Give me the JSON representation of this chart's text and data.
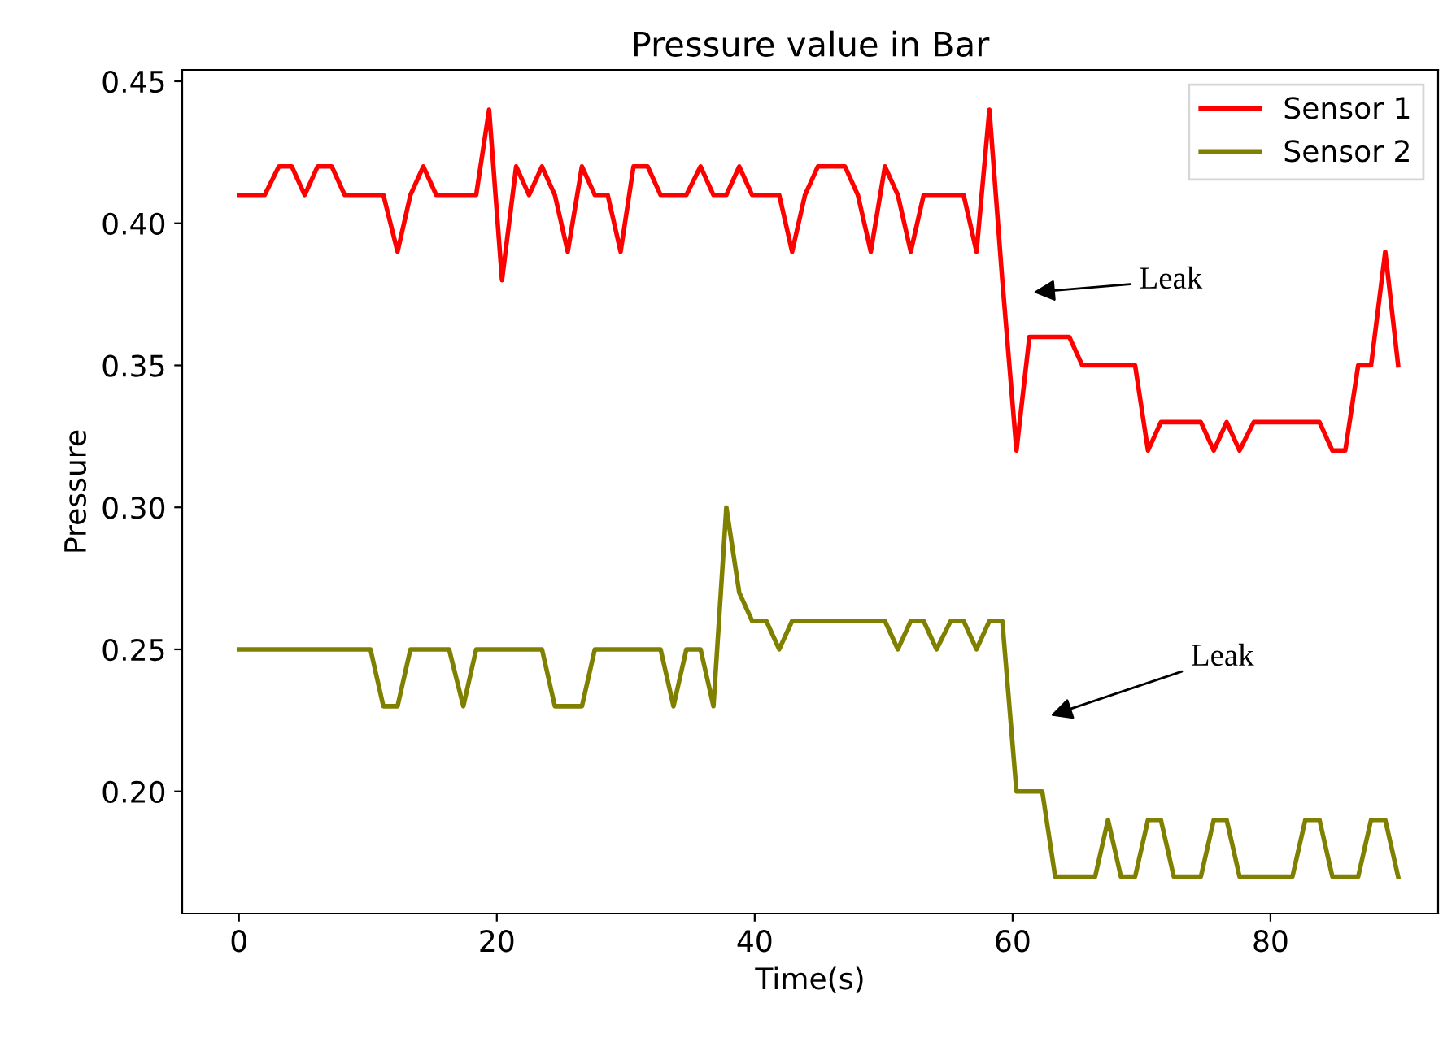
{
  "chart_data": {
    "type": "line",
    "title": "Pressure value in Bar",
    "xlabel": "Time(s)",
    "ylabel": "Pressure",
    "x": [
      0.0,
      1.0,
      2.0,
      3.1,
      4.1,
      5.1,
      6.1,
      7.2,
      8.2,
      9.2,
      10.2,
      11.2,
      12.3,
      13.3,
      14.3,
      15.3,
      16.3,
      17.4,
      18.4,
      19.4,
      20.4,
      21.5,
      22.5,
      23.5,
      24.5,
      25.5,
      26.6,
      27.6,
      28.6,
      29.6,
      30.6,
      31.7,
      32.7,
      33.7,
      34.7,
      35.8,
      36.8,
      37.8,
      38.8,
      39.8,
      40.9,
      41.9,
      42.9,
      43.9,
      44.9,
      46.0,
      47.0,
      48.0,
      49.0,
      50.1,
      51.1,
      52.1,
      53.1,
      54.1,
      55.2,
      56.2,
      57.2,
      58.2,
      59.2,
      60.3,
      61.3,
      62.3,
      63.3,
      64.4,
      65.4,
      66.4,
      67.4,
      68.4,
      69.5,
      70.5,
      71.5,
      72.5,
      73.5,
      74.6,
      75.6,
      76.6,
      77.6,
      78.7,
      79.7,
      80.7,
      81.7,
      82.7,
      83.8,
      84.8,
      85.8,
      86.8,
      87.8,
      88.9,
      89.9
    ],
    "series": [
      {
        "name": "Sensor 1",
        "color": "#ff0000",
        "values": [
          0.41,
          0.41,
          0.41,
          0.42,
          0.42,
          0.41,
          0.42,
          0.42,
          0.41,
          0.41,
          0.41,
          0.41,
          0.39,
          0.41,
          0.42,
          0.41,
          0.41,
          0.41,
          0.41,
          0.44,
          0.38,
          0.42,
          0.41,
          0.42,
          0.41,
          0.39,
          0.42,
          0.41,
          0.41,
          0.39,
          0.42,
          0.42,
          0.41,
          0.41,
          0.41,
          0.42,
          0.41,
          0.41,
          0.42,
          0.41,
          0.41,
          0.41,
          0.39,
          0.41,
          0.42,
          0.42,
          0.42,
          0.41,
          0.39,
          0.42,
          0.41,
          0.39,
          0.41,
          0.41,
          0.41,
          0.41,
          0.39,
          0.44,
          0.38,
          0.32,
          0.36,
          0.36,
          0.36,
          0.36,
          0.35,
          0.35,
          0.35,
          0.35,
          0.35,
          0.32,
          0.33,
          0.33,
          0.33,
          0.33,
          0.32,
          0.33,
          0.32,
          0.33,
          0.33,
          0.33,
          0.33,
          0.33,
          0.33,
          0.32,
          0.32,
          0.35,
          0.35,
          0.39,
          0.35
        ]
      },
      {
        "name": "Sensor 2",
        "color": "#808000",
        "values": [
          0.25,
          0.25,
          0.25,
          0.25,
          0.25,
          0.25,
          0.25,
          0.25,
          0.25,
          0.25,
          0.25,
          0.23,
          0.23,
          0.25,
          0.25,
          0.25,
          0.25,
          0.23,
          0.25,
          0.25,
          0.25,
          0.25,
          0.25,
          0.25,
          0.23,
          0.23,
          0.23,
          0.25,
          0.25,
          0.25,
          0.25,
          0.25,
          0.25,
          0.23,
          0.25,
          0.25,
          0.23,
          0.3,
          0.27,
          0.26,
          0.26,
          0.25,
          0.26,
          0.26,
          0.26,
          0.26,
          0.26,
          0.26,
          0.26,
          0.26,
          0.25,
          0.26,
          0.26,
          0.25,
          0.26,
          0.26,
          0.25,
          0.26,
          0.26,
          0.2,
          0.2,
          0.2,
          0.17,
          0.17,
          0.17,
          0.17,
          0.19,
          0.17,
          0.17,
          0.19,
          0.19,
          0.17,
          0.17,
          0.17,
          0.19,
          0.19,
          0.17,
          0.17,
          0.17,
          0.17,
          0.17,
          0.19,
          0.19,
          0.17,
          0.17,
          0.17,
          0.19,
          0.19,
          0.17
        ]
      }
    ],
    "annotations": [
      "Leak",
      "Leak"
    ],
    "xlim": [
      -4.4,
      93
    ],
    "ylim": [
      0.157,
      0.454
    ],
    "xticks": [
      0,
      20,
      40,
      60,
      80
    ],
    "yticks": [
      {
        "value": 0.2,
        "label": "0.20"
      },
      {
        "value": 0.25,
        "label": "0.25"
      },
      {
        "value": 0.3,
        "label": "0.30"
      },
      {
        "value": 0.35,
        "label": "0.35"
      },
      {
        "value": 0.4,
        "label": "0.40"
      },
      {
        "value": 0.45,
        "label": "0.45"
      }
    ],
    "grid": false,
    "legend": "top right",
    "marker": "none",
    "line_style": "solid"
  }
}
